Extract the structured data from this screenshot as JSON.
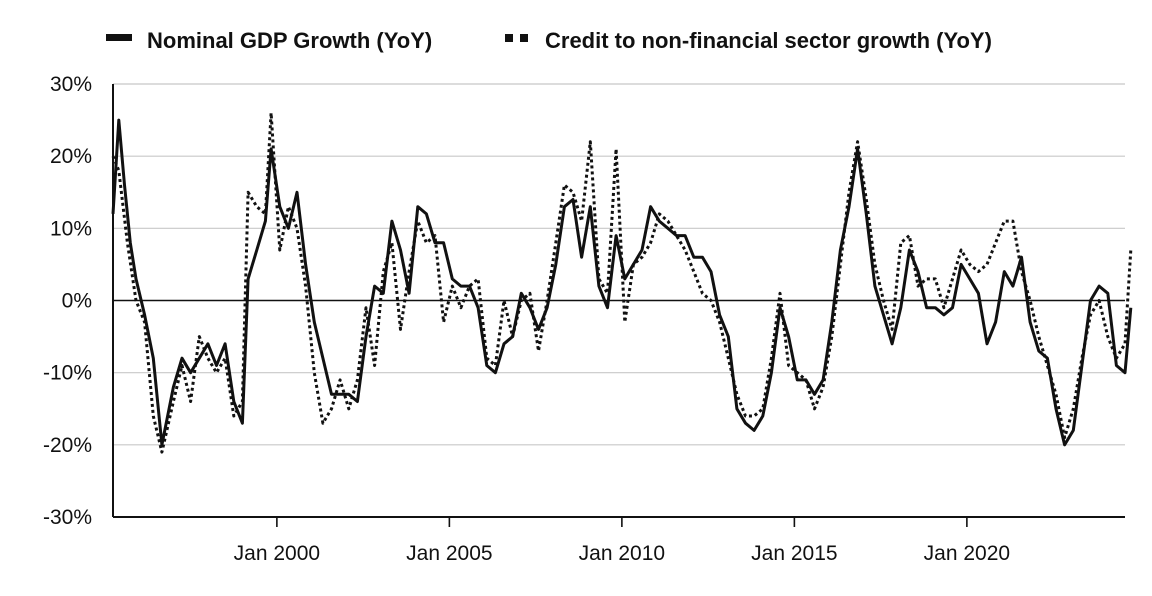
{
  "chart_data": {
    "type": "line",
    "title": "",
    "xlabel": "",
    "ylabel": "",
    "legend_position": "top",
    "grid": "horizontal",
    "ylim": [
      -30,
      30
    ],
    "y_ticks": [
      {
        "value": 30,
        "label": "30%"
      },
      {
        "value": 20,
        "label": "20%"
      },
      {
        "value": 10,
        "label": "10%"
      },
      {
        "value": 0,
        "label": "0%"
      },
      {
        "value": -10,
        "label": "-10%"
      },
      {
        "value": -20,
        "label": "-20%"
      },
      {
        "value": -30,
        "label": "-30%"
      }
    ],
    "x_range": [
      "1995-04",
      "2024-08"
    ],
    "x_ticks": [
      {
        "value": "2000-01",
        "label": "Jan 2000"
      },
      {
        "value": "2005-01",
        "label": "Jan 2005"
      },
      {
        "value": "2010-01",
        "label": "Jan 2010"
      },
      {
        "value": "2015-01",
        "label": "Jan 2015"
      },
      {
        "value": "2020-01",
        "label": "Jan 2020"
      }
    ],
    "series": [
      {
        "name": "Nominal GDP Growth (YoY)",
        "style": "solid",
        "color": "#111111",
        "points": [
          [
            "1995-04",
            12
          ],
          [
            "1995-06",
            25
          ],
          [
            "1995-08",
            16
          ],
          [
            "1995-10",
            8
          ],
          [
            "1995-12",
            3
          ],
          [
            "1996-03",
            -2
          ],
          [
            "1996-06",
            -8
          ],
          [
            "1996-09",
            -20
          ],
          [
            "1997-01",
            -12
          ],
          [
            "1997-04",
            -8
          ],
          [
            "1997-07",
            -10
          ],
          [
            "1997-10",
            -8
          ],
          [
            "1998-01",
            -6
          ],
          [
            "1998-04",
            -9
          ],
          [
            "1998-07",
            -6
          ],
          [
            "1998-10",
            -14
          ],
          [
            "1999-01",
            -17
          ],
          [
            "1999-03",
            3
          ],
          [
            "1999-06",
            7
          ],
          [
            "1999-09",
            11
          ],
          [
            "1999-11",
            21
          ],
          [
            "2000-02",
            13
          ],
          [
            "2000-05",
            10
          ],
          [
            "2000-08",
            15
          ],
          [
            "2000-11",
            5
          ],
          [
            "2001-02",
            -3
          ],
          [
            "2001-05",
            -8
          ],
          [
            "2001-08",
            -13
          ],
          [
            "2001-11",
            -13
          ],
          [
            "2002-02",
            -13
          ],
          [
            "2002-05",
            -14
          ],
          [
            "2002-08",
            -5
          ],
          [
            "2002-11",
            2
          ],
          [
            "2003-02",
            1
          ],
          [
            "2003-05",
            11
          ],
          [
            "2003-08",
            7
          ],
          [
            "2003-11",
            1
          ],
          [
            "2004-02",
            13
          ],
          [
            "2004-05",
            12
          ],
          [
            "2004-08",
            8
          ],
          [
            "2004-11",
            8
          ],
          [
            "2005-02",
            3
          ],
          [
            "2005-05",
            2
          ],
          [
            "2005-08",
            2
          ],
          [
            "2005-11",
            -1
          ],
          [
            "2006-02",
            -9
          ],
          [
            "2006-05",
            -10
          ],
          [
            "2006-08",
            -6
          ],
          [
            "2006-11",
            -5
          ],
          [
            "2007-02",
            1
          ],
          [
            "2007-05",
            -1
          ],
          [
            "2007-08",
            -4
          ],
          [
            "2007-11",
            -1
          ],
          [
            "2008-02",
            5
          ],
          [
            "2008-05",
            13
          ],
          [
            "2008-08",
            14
          ],
          [
            "2008-11",
            6
          ],
          [
            "2009-02",
            13
          ],
          [
            "2009-05",
            2
          ],
          [
            "2009-08",
            -1
          ],
          [
            "2009-11",
            9
          ],
          [
            "2010-02",
            3
          ],
          [
            "2010-05",
            5
          ],
          [
            "2010-08",
            7
          ],
          [
            "2010-11",
            13
          ],
          [
            "2011-02",
            11
          ],
          [
            "2011-05",
            10
          ],
          [
            "2011-08",
            9
          ],
          [
            "2011-11",
            9
          ],
          [
            "2012-02",
            6
          ],
          [
            "2012-05",
            6
          ],
          [
            "2012-08",
            4
          ],
          [
            "2012-11",
            -2
          ],
          [
            "2013-02",
            -5
          ],
          [
            "2013-05",
            -15
          ],
          [
            "2013-08",
            -17
          ],
          [
            "2013-11",
            -18
          ],
          [
            "2014-02",
            -16
          ],
          [
            "2014-05",
            -10
          ],
          [
            "2014-08",
            -1
          ],
          [
            "2014-11",
            -5
          ],
          [
            "2015-02",
            -11
          ],
          [
            "2015-05",
            -11
          ],
          [
            "2015-08",
            -13
          ],
          [
            "2015-11",
            -11
          ],
          [
            "2016-02",
            -3
          ],
          [
            "2016-05",
            7
          ],
          [
            "2016-08",
            13
          ],
          [
            "2016-11",
            21
          ],
          [
            "2017-02",
            12
          ],
          [
            "2017-05",
            2
          ],
          [
            "2017-08",
            -2
          ],
          [
            "2017-11",
            -6
          ],
          [
            "2018-02",
            -1
          ],
          [
            "2018-05",
            7
          ],
          [
            "2018-08",
            4
          ],
          [
            "2018-11",
            -1
          ],
          [
            "2019-02",
            -1
          ],
          [
            "2019-05",
            -2
          ],
          [
            "2019-08",
            -1
          ],
          [
            "2019-11",
            5
          ],
          [
            "2020-02",
            3
          ],
          [
            "2020-05",
            1
          ],
          [
            "2020-08",
            -6
          ],
          [
            "2020-11",
            -3
          ],
          [
            "2021-02",
            4
          ],
          [
            "2021-05",
            2
          ],
          [
            "2021-08",
            6
          ],
          [
            "2021-11",
            -3
          ],
          [
            "2022-02",
            -7
          ],
          [
            "2022-05",
            -8
          ],
          [
            "2022-08",
            -15
          ],
          [
            "2022-11",
            -20
          ],
          [
            "2023-02",
            -18
          ],
          [
            "2023-05",
            -9
          ],
          [
            "2023-08",
            0
          ],
          [
            "2023-11",
            2
          ],
          [
            "2024-02",
            1
          ],
          [
            "2024-05",
            -9
          ],
          [
            "2024-08",
            -10
          ],
          [
            "2024-10",
            -1
          ]
        ]
      },
      {
        "name": "Credit to non-financial sector growth (YoY)",
        "style": "dotted",
        "color": "#111111",
        "points": [
          [
            "1995-04",
            20
          ],
          [
            "1995-06",
            18
          ],
          [
            "1995-09",
            8
          ],
          [
            "1995-12",
            0
          ],
          [
            "1996-03",
            -3
          ],
          [
            "1996-06",
            -16
          ],
          [
            "1996-09",
            -21
          ],
          [
            "1997-01",
            -14
          ],
          [
            "1997-04",
            -9
          ],
          [
            "1997-07",
            -14
          ],
          [
            "1997-10",
            -5
          ],
          [
            "1998-01",
            -8
          ],
          [
            "1998-04",
            -10
          ],
          [
            "1998-07",
            -8
          ],
          [
            "1998-10",
            -16
          ],
          [
            "1999-01",
            -14
          ],
          [
            "1999-03",
            15
          ],
          [
            "1999-06",
            13
          ],
          [
            "1999-09",
            12
          ],
          [
            "1999-11",
            26
          ],
          [
            "2000-02",
            7
          ],
          [
            "2000-05",
            13
          ],
          [
            "2000-08",
            10
          ],
          [
            "2000-11",
            2
          ],
          [
            "2001-02",
            -10
          ],
          [
            "2001-05",
            -17
          ],
          [
            "2001-08",
            -15
          ],
          [
            "2001-11",
            -11
          ],
          [
            "2002-02",
            -15
          ],
          [
            "2002-05",
            -11
          ],
          [
            "2002-08",
            -1
          ],
          [
            "2002-11",
            -9
          ],
          [
            "2003-02",
            4
          ],
          [
            "2003-05",
            8
          ],
          [
            "2003-08",
            -4
          ],
          [
            "2003-11",
            4
          ],
          [
            "2004-02",
            11
          ],
          [
            "2004-05",
            8
          ],
          [
            "2004-08",
            9
          ],
          [
            "2004-11",
            -3
          ],
          [
            "2005-02",
            2
          ],
          [
            "2005-05",
            -1
          ],
          [
            "2005-08",
            2
          ],
          [
            "2005-11",
            3
          ],
          [
            "2006-02",
            -8
          ],
          [
            "2006-05",
            -9
          ],
          [
            "2006-08",
            0
          ],
          [
            "2006-11",
            -5
          ],
          [
            "2007-02",
            0
          ],
          [
            "2007-05",
            1
          ],
          [
            "2007-08",
            -7
          ],
          [
            "2007-11",
            0
          ],
          [
            "2008-02",
            8
          ],
          [
            "2008-05",
            16
          ],
          [
            "2008-08",
            15
          ],
          [
            "2008-11",
            11
          ],
          [
            "2009-02",
            22
          ],
          [
            "2009-05",
            3
          ],
          [
            "2009-08",
            1
          ],
          [
            "2009-11",
            21
          ],
          [
            "2010-02",
            -3
          ],
          [
            "2010-05",
            5
          ],
          [
            "2010-08",
            6
          ],
          [
            "2010-11",
            8
          ],
          [
            "2011-02",
            12
          ],
          [
            "2011-05",
            11
          ],
          [
            "2011-08",
            9
          ],
          [
            "2011-11",
            7
          ],
          [
            "2012-02",
            4
          ],
          [
            "2012-05",
            1
          ],
          [
            "2012-08",
            0
          ],
          [
            "2012-11",
            -3
          ],
          [
            "2013-02",
            -8
          ],
          [
            "2013-05",
            -13
          ],
          [
            "2013-08",
            -16
          ],
          [
            "2013-11",
            -16
          ],
          [
            "2014-02",
            -15
          ],
          [
            "2014-05",
            -8
          ],
          [
            "2014-08",
            1
          ],
          [
            "2014-11",
            -9
          ],
          [
            "2015-02",
            -10
          ],
          [
            "2015-05",
            -11
          ],
          [
            "2015-08",
            -15
          ],
          [
            "2015-11",
            -12
          ],
          [
            "2016-02",
            -5
          ],
          [
            "2016-05",
            5
          ],
          [
            "2016-08",
            15
          ],
          [
            "2016-11",
            22
          ],
          [
            "2017-02",
            14
          ],
          [
            "2017-05",
            5
          ],
          [
            "2017-08",
            0
          ],
          [
            "2017-11",
            -4
          ],
          [
            "2018-02",
            8
          ],
          [
            "2018-05",
            9
          ],
          [
            "2018-08",
            2
          ],
          [
            "2018-11",
            3
          ],
          [
            "2019-02",
            3
          ],
          [
            "2019-05",
            -1
          ],
          [
            "2019-08",
            3
          ],
          [
            "2019-11",
            7
          ],
          [
            "2020-02",
            5
          ],
          [
            "2020-05",
            4
          ],
          [
            "2020-08",
            5
          ],
          [
            "2020-11",
            8
          ],
          [
            "2021-02",
            11
          ],
          [
            "2021-05",
            11
          ],
          [
            "2021-08",
            4
          ],
          [
            "2021-11",
            0
          ],
          [
            "2022-02",
            -5
          ],
          [
            "2022-05",
            -9
          ],
          [
            "2022-08",
            -13
          ],
          [
            "2022-11",
            -19
          ],
          [
            "2023-02",
            -15
          ],
          [
            "2023-05",
            -8
          ],
          [
            "2023-08",
            -2
          ],
          [
            "2023-11",
            0
          ],
          [
            "2024-02",
            -5
          ],
          [
            "2024-05",
            -8
          ],
          [
            "2024-08",
            -6
          ],
          [
            "2024-10",
            7
          ]
        ]
      }
    ]
  }
}
